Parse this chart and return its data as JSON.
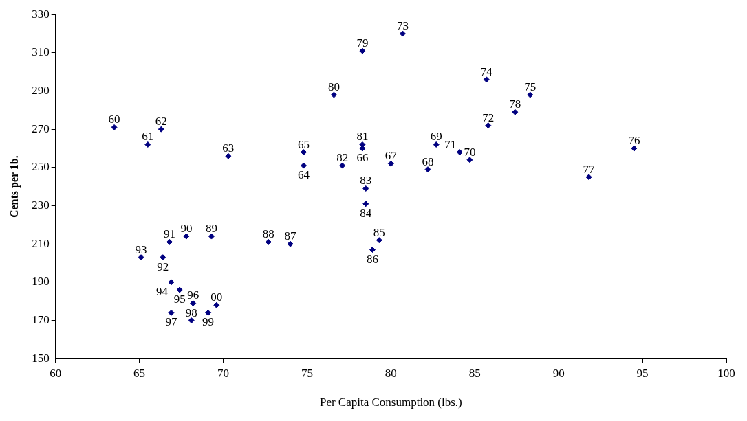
{
  "chart_data": {
    "type": "scatter",
    "xlabel": "Per Capita Consumption (lbs.)",
    "ylabel": "Cents per 1b.",
    "xlim": [
      60,
      100
    ],
    "xticks": [
      60,
      65,
      70,
      75,
      80,
      85,
      90,
      95,
      100
    ],
    "ylim": [
      150,
      330
    ],
    "yticks": [
      150,
      170,
      190,
      210,
      230,
      250,
      270,
      290,
      310,
      330
    ],
    "grid": false,
    "legend": false,
    "marker": "diamond",
    "series": [
      {
        "color": "#000080",
        "x": [
          63.5,
          65.5,
          66.3,
          70.3,
          74.8,
          74.8,
          78.3,
          80.0,
          82.2,
          82.7,
          84.7,
          84.1,
          85.8,
          80.7,
          85.7,
          88.3,
          94.5,
          91.8,
          87.4,
          78.3,
          76.6,
          78.3,
          77.1,
          78.5,
          78.5,
          79.3,
          78.9,
          74.0,
          72.7,
          69.3,
          67.8,
          66.8,
          66.4,
          65.1,
          66.9,
          67.4,
          68.2,
          66.9,
          68.1,
          69.1,
          69.6
        ],
        "values": [
          271,
          262,
          270,
          256,
          251,
          258,
          260,
          252,
          249,
          262,
          254,
          258,
          272,
          320,
          296,
          288,
          260,
          245,
          279,
          311,
          288,
          262,
          251,
          239,
          231,
          212,
          207,
          210,
          211,
          214,
          214,
          211,
          203,
          203,
          190,
          186,
          179,
          174,
          170,
          174,
          178
        ]
      }
    ],
    "annotations": [
      {
        "text": "60",
        "x": 63.5,
        "y": 271
      },
      {
        "text": "61",
        "x": 65.5,
        "y": 262
      },
      {
        "text": "62",
        "x": 66.3,
        "y": 270
      },
      {
        "text": "63",
        "x": 70.3,
        "y": 256
      },
      {
        "text": "64",
        "x": 74.8,
        "y": 251
      },
      {
        "text": "65",
        "x": 74.8,
        "y": 258
      },
      {
        "text": "66",
        "x": 78.3,
        "y": 260
      },
      {
        "text": "67",
        "x": 80.0,
        "y": 252
      },
      {
        "text": "68",
        "x": 82.2,
        "y": 249
      },
      {
        "text": "69",
        "x": 82.7,
        "y": 262
      },
      {
        "text": "70",
        "x": 84.7,
        "y": 254
      },
      {
        "text": "71",
        "x": 84.1,
        "y": 258
      },
      {
        "text": "72",
        "x": 85.8,
        "y": 272
      },
      {
        "text": "73",
        "x": 80.7,
        "y": 320
      },
      {
        "text": "74",
        "x": 85.7,
        "y": 296
      },
      {
        "text": "75",
        "x": 88.3,
        "y": 288
      },
      {
        "text": "76",
        "x": 94.5,
        "y": 260
      },
      {
        "text": "77",
        "x": 91.8,
        "y": 245
      },
      {
        "text": "78",
        "x": 87.4,
        "y": 279
      },
      {
        "text": "79",
        "x": 78.3,
        "y": 311
      },
      {
        "text": "80",
        "x": 76.6,
        "y": 288
      },
      {
        "text": "81",
        "x": 78.3,
        "y": 262
      },
      {
        "text": "82",
        "x": 77.1,
        "y": 251
      },
      {
        "text": "83",
        "x": 78.5,
        "y": 239
      },
      {
        "text": "84",
        "x": 78.5,
        "y": 231
      },
      {
        "text": "85",
        "x": 79.3,
        "y": 212
      },
      {
        "text": "86",
        "x": 78.9,
        "y": 207
      },
      {
        "text": "87",
        "x": 74.0,
        "y": 210
      },
      {
        "text": "88",
        "x": 72.7,
        "y": 211
      },
      {
        "text": "89",
        "x": 69.3,
        "y": 214
      },
      {
        "text": "90",
        "x": 67.8,
        "y": 214
      },
      {
        "text": "91",
        "x": 66.8,
        "y": 211
      },
      {
        "text": "92",
        "x": 66.4,
        "y": 203
      },
      {
        "text": "93",
        "x": 65.1,
        "y": 203
      },
      {
        "text": "94",
        "x": 66.9,
        "y": 190
      },
      {
        "text": "95",
        "x": 67.4,
        "y": 186
      },
      {
        "text": "96",
        "x": 68.2,
        "y": 179
      },
      {
        "text": "97",
        "x": 66.9,
        "y": 174
      },
      {
        "text": "98",
        "x": 68.1,
        "y": 170
      },
      {
        "text": "99",
        "x": 69.1,
        "y": 174
      },
      {
        "text": "00",
        "x": 69.6,
        "y": 178
      }
    ]
  }
}
